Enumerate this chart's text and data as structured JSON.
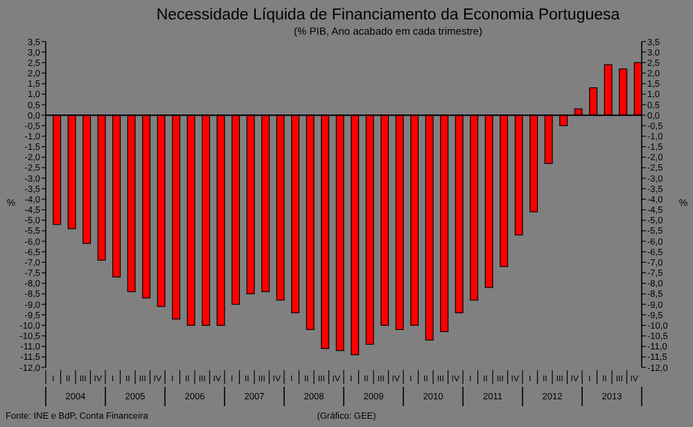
{
  "chart_data": {
    "type": "bar",
    "title": "Necessidade Líquida de Financiamento da Economia Portuguesa",
    "subtitle": "(% PIB, Ano acabado em cada trimestre)",
    "ylabel": "%",
    "y2label": "%",
    "categories": [
      "I",
      "II",
      "III",
      "IV",
      "I",
      "II",
      "III",
      "IV",
      "I",
      "II",
      "III",
      "IV",
      "I",
      "II",
      "III",
      "IV",
      "I",
      "II",
      "III",
      "IV",
      "I",
      "II",
      "III",
      "IV",
      "I",
      "II",
      "III",
      "IV",
      "I",
      "II",
      "III",
      "IV",
      "I",
      "II",
      "III",
      "IV",
      "I",
      "II",
      "III",
      "IV"
    ],
    "values": [
      -5.2,
      -5.4,
      -6.1,
      -6.9,
      -7.7,
      -8.4,
      -8.7,
      -9.1,
      -9.7,
      -10.0,
      -10.0,
      -10.0,
      -9.0,
      -8.5,
      -8.4,
      -8.8,
      -9.4,
      -10.2,
      -11.1,
      -11.2,
      -11.4,
      -10.9,
      -10.0,
      -10.2,
      -10.0,
      -10.7,
      -10.3,
      -9.4,
      -8.8,
      -8.2,
      -7.2,
      -5.7,
      -4.6,
      -2.3,
      -0.5,
      0.3,
      1.3,
      2.4,
      2.2,
      2.5
    ],
    "color": "#ff0000",
    "ylim": [
      -12,
      3.5
    ],
    "yticks": [
      {
        "value": 3.5,
        "label": "3,5"
      },
      {
        "value": 3,
        "label": "3,0"
      },
      {
        "value": 2.5,
        "label": "2,5"
      },
      {
        "value": 2,
        "label": "2,0"
      },
      {
        "value": 1.5,
        "label": "1,5"
      },
      {
        "value": 1,
        "label": "1,0"
      },
      {
        "value": 0.5,
        "label": "0,5"
      },
      {
        "value": 0,
        "label": "0,0"
      },
      {
        "value": -0.5,
        "label": "-0,5"
      },
      {
        "value": -1,
        "label": "-1,0"
      },
      {
        "value": -1.5,
        "label": "-1,5"
      },
      {
        "value": -2,
        "label": "-2,0"
      },
      {
        "value": -2.5,
        "label": "-2,5"
      },
      {
        "value": -3,
        "label": "-3,0"
      },
      {
        "value": -3.5,
        "label": "-3,5"
      },
      {
        "value": -4,
        "label": "-4,0"
      },
      {
        "value": -4.5,
        "label": "-4,5"
      },
      {
        "value": -5,
        "label": "-5,0"
      },
      {
        "value": -5.5,
        "label": "-5,5"
      },
      {
        "value": -6,
        "label": "-6,0"
      },
      {
        "value": -6.5,
        "label": "-6,5"
      },
      {
        "value": -7,
        "label": "-7,0"
      },
      {
        "value": -7.5,
        "label": "-7,5"
      },
      {
        "value": -8,
        "label": "-8,0"
      },
      {
        "value": -8.5,
        "label": "-8,5"
      },
      {
        "value": -9,
        "label": "-9,0"
      },
      {
        "value": -9.5,
        "label": "-9,5"
      },
      {
        "value": -10,
        "label": "-10,0"
      },
      {
        "value": -10.5,
        "label": "-10,5"
      },
      {
        "value": -11,
        "label": "-11,0"
      },
      {
        "value": -11.5,
        "label": "-11,5"
      },
      {
        "value": -12,
        "label": "-12,0"
      }
    ],
    "y2lim": [
      -12,
      3.5
    ],
    "y2ticks": [
      {
        "value": 3.5,
        "label": "3,5"
      },
      {
        "value": 3,
        "label": "3,0"
      },
      {
        "value": 2.5,
        "label": "2,5"
      },
      {
        "value": 2,
        "label": "2,0"
      },
      {
        "value": 1.5,
        "label": "1,5"
      },
      {
        "value": 1,
        "label": "1,0"
      },
      {
        "value": 0.5,
        "label": "0,5"
      },
      {
        "value": 0,
        "label": "0,0"
      },
      {
        "value": -0.5,
        "label": "-0,5"
      },
      {
        "value": -1,
        "label": "-1,0"
      },
      {
        "value": -1.5,
        "label": "-1,5"
      },
      {
        "value": -2,
        "label": "-2,0"
      },
      {
        "value": -2.5,
        "label": "-2,5"
      },
      {
        "value": -3,
        "label": "-3,0"
      },
      {
        "value": -3.5,
        "label": "-3,5"
      },
      {
        "value": -4,
        "label": "-4,0"
      },
      {
        "value": -4.5,
        "label": "-4,5"
      },
      {
        "value": -5,
        "label": "-5,0"
      },
      {
        "value": -5.5,
        "label": "-5,5"
      },
      {
        "value": -6,
        "label": "-6,0"
      },
      {
        "value": -6.5,
        "label": "-6,5"
      },
      {
        "value": -7,
        "label": "-7,0"
      },
      {
        "value": -7.5,
        "label": "-7,5"
      },
      {
        "value": -8,
        "label": "-8,0"
      },
      {
        "value": -8.5,
        "label": "-8,5"
      },
      {
        "value": -9,
        "label": "-9,0"
      },
      {
        "value": -9.5,
        "label": "-9,5"
      },
      {
        "value": -10,
        "label": "-10,0"
      },
      {
        "value": -10.5,
        "label": "-10,5"
      },
      {
        "value": -11,
        "label": "-11,0"
      },
      {
        "value": -11.5,
        "label": "-11,5"
      },
      {
        "value": -12,
        "label": "-12,0"
      }
    ],
    "x2lim": [
      2004,
      2014
    ],
    "x2ticks": [
      {
        "value": 2004,
        "label": null
      },
      {
        "value": 2004.5,
        "label": "2004"
      },
      {
        "value": 2005,
        "label": null
      },
      {
        "value": 2005.5,
        "label": "2005"
      },
      {
        "value": 2006,
        "label": null
      },
      {
        "value": 2006.5,
        "label": "2006"
      },
      {
        "value": 2007,
        "label": null
      },
      {
        "value": 2007.5,
        "label": "2007"
      },
      {
        "value": 2008,
        "label": null
      },
      {
        "value": 2008.5,
        "label": "2008"
      },
      {
        "value": 2009,
        "label": null
      },
      {
        "value": 2009.5,
        "label": "2009"
      },
      {
        "value": 2010,
        "label": null
      },
      {
        "value": 2010.5,
        "label": "2010"
      },
      {
        "value": 2011,
        "label": null
      },
      {
        "value": 2011.5,
        "label": "2011"
      },
      {
        "value": 2012,
        "label": null
      },
      {
        "value": 2012.5,
        "label": "2012"
      },
      {
        "value": 2013,
        "label": null
      },
      {
        "value": 2013.5,
        "label": "2013"
      },
      {
        "value": 2014,
        "label": null
      }
    ],
    "annotations": [
      "Fonte: INE e BdP, Conta Financeira",
      "(Gráfico: GEE)"
    ]
  }
}
